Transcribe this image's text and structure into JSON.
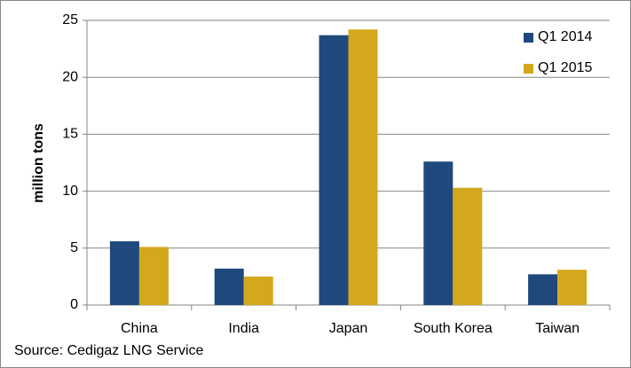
{
  "chart_data": {
    "type": "bar",
    "y_label": "million tons",
    "source": "Source: Cedigaz LNG Service",
    "categories": [
      "China",
      "India",
      "Japan",
      "South Korea",
      "Taiwan"
    ],
    "series": [
      {
        "name": "Q1 2014",
        "color": "#1f497d",
        "values": [
          5.6,
          3.2,
          23.7,
          12.6,
          2.7
        ]
      },
      {
        "name": "Q1 2015",
        "color": "#d4a81c",
        "values": [
          5.1,
          2.5,
          24.2,
          10.3,
          3.1
        ]
      }
    ],
    "ylim": [
      0,
      25
    ],
    "yticks": [
      0,
      5,
      10,
      15,
      20,
      25
    ],
    "grid": true,
    "legend": "top-right"
  }
}
